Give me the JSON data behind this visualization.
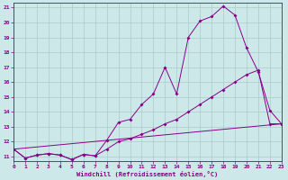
{
  "xlabel": "Windchill (Refroidissement éolien,°C)",
  "bg_color": "#cce8e8",
  "grid_color": "#aacccc",
  "line_color": "#880088",
  "xmin": 0,
  "xmax": 23,
  "ymin": 10.7,
  "ymax": 21.3,
  "line1_y": [
    11.5,
    10.9,
    11.1,
    11.2,
    11.1,
    10.8,
    11.15,
    11.05,
    12.1,
    13.3,
    13.5,
    14.5,
    15.2,
    17.0,
    15.2,
    19.0,
    20.1,
    20.4,
    21.1,
    20.5,
    18.3,
    16.7,
    14.1,
    13.2
  ],
  "line2_y": [
    11.5,
    10.9,
    11.1,
    11.2,
    11.1,
    10.8,
    11.15,
    11.05,
    11.5,
    12.0,
    12.2,
    12.5,
    12.8,
    13.2,
    13.5,
    14.0,
    14.5,
    15.0,
    15.5,
    16.0,
    16.5,
    16.8,
    13.2,
    13.2
  ],
  "line3_x": [
    0,
    23
  ],
  "line3_y": [
    11.5,
    13.2
  ],
  "yticks": [
    11,
    12,
    13,
    14,
    15,
    16,
    17,
    18,
    19,
    20,
    21
  ],
  "xticks": [
    0,
    1,
    2,
    3,
    4,
    5,
    6,
    7,
    8,
    9,
    10,
    11,
    12,
    13,
    14,
    15,
    16,
    17,
    18,
    19,
    20,
    21,
    22,
    23
  ]
}
